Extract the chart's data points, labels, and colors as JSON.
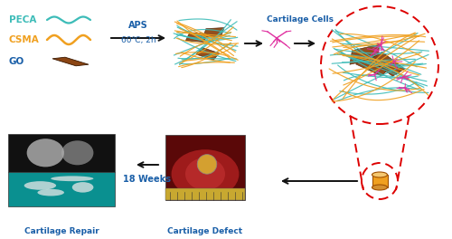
{
  "bg_color": "#ffffff",
  "peca_color": "#3dbcb8",
  "csma_color": "#f0a020",
  "go_fill": "#8B4513",
  "go_edge": "#3a1800",
  "arrow_color": "#111111",
  "blue_text_color": "#1a5fa8",
  "aps_text": "APS",
  "cond_text": "60℃, 2h",
  "cartilage_cells_text": "Cartilage Cells",
  "weeks_text": "18 Weeks",
  "cartilage_defect_text": "Cartilage Defect",
  "cartilage_repair_text": "Cartilage Repair",
  "labels": [
    "PECA",
    "CSMA",
    "GO"
  ],
  "label_colors": [
    "#3dbcb8",
    "#f0a020",
    "#1a5fa8"
  ],
  "cell_color": "#e030a0",
  "red_dashed": "#dd0000",
  "cylinder_color": "#f0a020",
  "cylinder_top": "#f5c870",
  "cylinder_edge": "#a05000",
  "repair_dark": "#1a1a1a",
  "repair_teal": "#20b8c0",
  "defect_dark": "#8B1A1A",
  "defect_yellow": "#c8a040"
}
